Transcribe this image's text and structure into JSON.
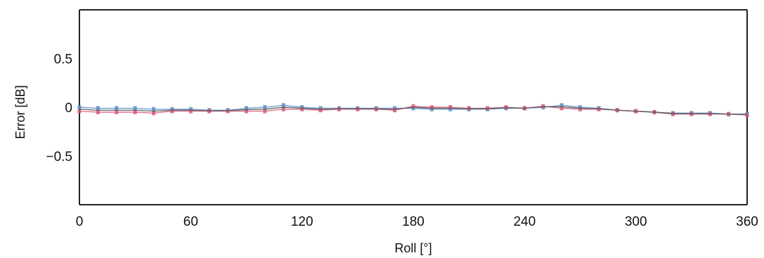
{
  "chart_data": {
    "type": "line",
    "title": "",
    "xlabel": "Roll [°]",
    "ylabel": "Error [dB]",
    "xlim": [
      0,
      360
    ],
    "ylim": [
      -1,
      1
    ],
    "x_ticks": [
      0,
      60,
      120,
      180,
      240,
      300,
      360
    ],
    "x_tick_labels": [
      "0",
      "60",
      "120",
      "180",
      "240",
      "300",
      "360"
    ],
    "y_ticks": [
      0.5,
      0,
      -0.5
    ],
    "y_tick_labels": [
      "0.5",
      "0",
      "−0.5"
    ],
    "grid": false,
    "legend": "none",
    "x": [
      0,
      10,
      20,
      30,
      40,
      50,
      60,
      70,
      80,
      90,
      100,
      110,
      120,
      130,
      140,
      150,
      160,
      170,
      180,
      190,
      200,
      210,
      220,
      230,
      240,
      250,
      260,
      270,
      280,
      290,
      300,
      310,
      320,
      330,
      340,
      350,
      360
    ],
    "series": [
      {
        "color": "#5b8fc9",
        "values": [
          0.0,
          -0.01,
          -0.01,
          -0.01,
          -0.02,
          -0.02,
          -0.02,
          -0.03,
          -0.03,
          -0.01,
          0.0,
          0.02,
          0.0,
          -0.01,
          -0.01,
          -0.01,
          -0.01,
          -0.01,
          -0.01,
          -0.02,
          -0.02,
          -0.02,
          -0.02,
          -0.01,
          -0.01,
          0.0,
          0.02,
          0.0,
          -0.01,
          -0.03,
          -0.04,
          -0.05,
          -0.06,
          -0.06,
          -0.06,
          -0.07,
          -0.07
        ]
      },
      {
        "color": "#d75a7a",
        "values": [
          -0.04,
          -0.05,
          -0.05,
          -0.05,
          -0.06,
          -0.04,
          -0.04,
          -0.04,
          -0.04,
          -0.04,
          -0.04,
          -0.02,
          -0.02,
          -0.03,
          -0.02,
          -0.02,
          -0.02,
          -0.03,
          0.01,
          0.0,
          0.0,
          -0.01,
          -0.01,
          0.0,
          -0.01,
          0.01,
          -0.01,
          -0.02,
          -0.02,
          -0.03,
          -0.04,
          -0.05,
          -0.07,
          -0.07,
          -0.07,
          -0.07,
          -0.08
        ]
      },
      {
        "color": "#555555",
        "values": [
          -0.02,
          -0.03,
          -0.03,
          -0.03,
          -0.04,
          -0.03,
          -0.03,
          -0.035,
          -0.035,
          -0.025,
          -0.02,
          0.0,
          -0.01,
          -0.02,
          -0.015,
          -0.015,
          -0.015,
          -0.02,
          0.0,
          -0.01,
          -0.01,
          -0.015,
          -0.015,
          -0.005,
          -0.01,
          0.005,
          0.005,
          -0.01,
          -0.015,
          -0.03,
          -0.04,
          -0.05,
          -0.065,
          -0.065,
          -0.065,
          -0.07,
          -0.075
        ]
      }
    ]
  }
}
